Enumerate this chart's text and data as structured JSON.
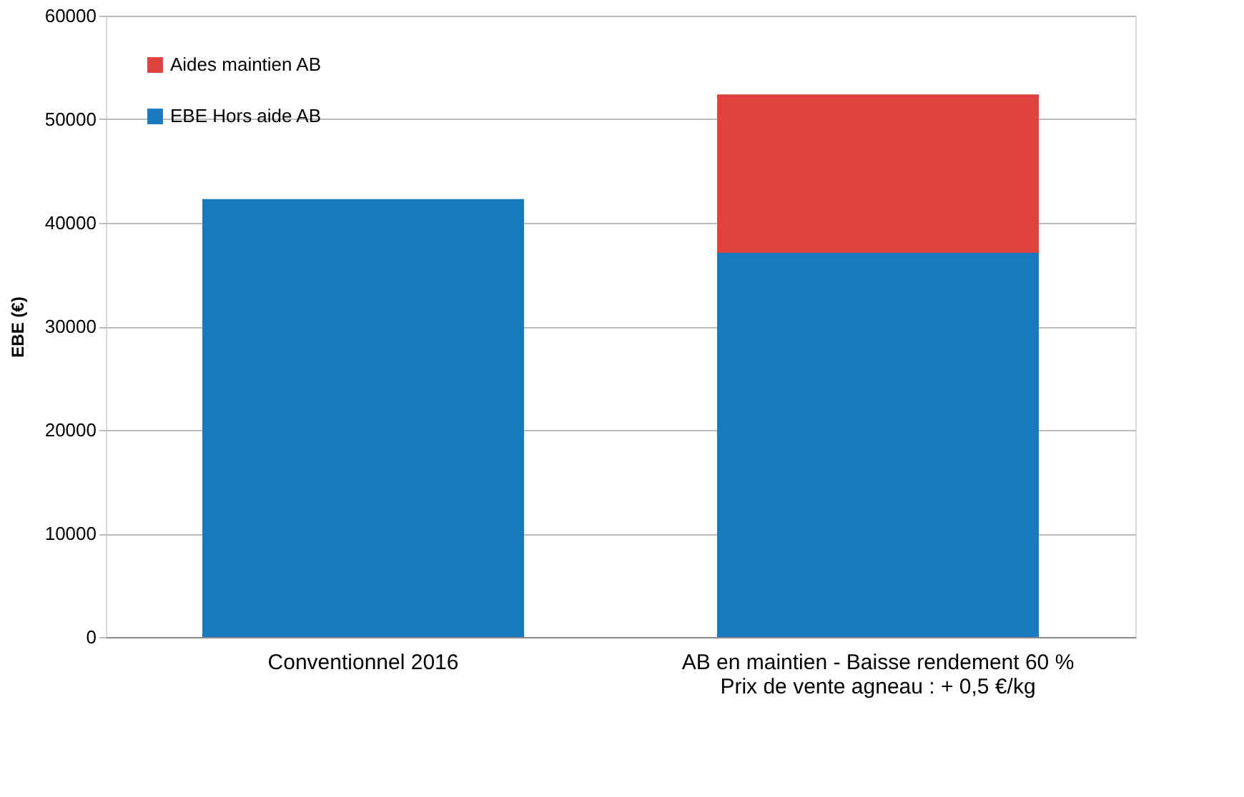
{
  "chart_data": {
    "type": "bar",
    "stacked": true,
    "ylabel": "EBE (€)",
    "categories": [
      "Conventionnel 2016",
      "AB en maintien - Baisse rendement 60 %\nPrix de vente agneau : + 0,5 €/kg"
    ],
    "series": [
      {
        "name": "EBE Hors aide AB",
        "color": "#1a7abf",
        "values": [
          42300,
          37100
        ]
      },
      {
        "name": "Aides maintien AB",
        "color": "#dd423e",
        "values": [
          0,
          15300
        ]
      }
    ],
    "ylim": [
      0,
      60000
    ],
    "yticks": [
      0,
      10000,
      20000,
      30000,
      40000,
      50000,
      60000
    ],
    "grid": "y",
    "legend": "top left"
  }
}
